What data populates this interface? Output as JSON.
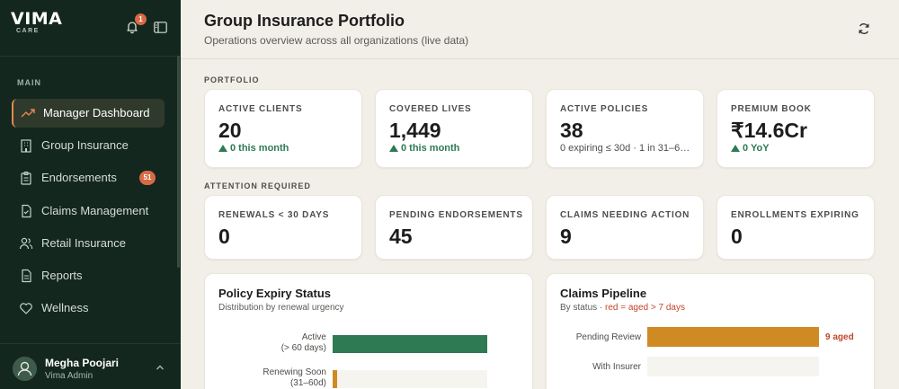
{
  "sidebar": {
    "brand": "VIMA",
    "brand_sub": "CARE",
    "notifications_count": "1",
    "section_label": "MAIN",
    "items": [
      {
        "label": "Manager Dashboard",
        "icon": "trend-up-icon",
        "active": true
      },
      {
        "label": "Group Insurance",
        "icon": "building-icon"
      },
      {
        "label": "Endorsements",
        "icon": "clipboard-icon",
        "badge": "51"
      },
      {
        "label": "Claims Management",
        "icon": "document-icon"
      },
      {
        "label": "Retail Insurance",
        "icon": "users-icon"
      },
      {
        "label": "Reports",
        "icon": "report-icon"
      },
      {
        "label": "Wellness",
        "icon": "heart-icon"
      }
    ],
    "user": {
      "name": "Megha Poojari",
      "role": "Vima Admin"
    }
  },
  "header": {
    "title": "Group Insurance Portfolio",
    "subtitle": "Operations overview across all organizations (live data)"
  },
  "portfolio": {
    "label": "PORTFOLIO",
    "cards": [
      {
        "label": "ACTIVE CLIENTS",
        "value": "20",
        "sub": "0 this month",
        "trend": "up"
      },
      {
        "label": "COVERED LIVES",
        "value": "1,449",
        "sub": "0 this month",
        "trend": "up"
      },
      {
        "label": "ACTIVE POLICIES",
        "value": "38",
        "sub": "0 expiring ≤ 30d · 1 in 31–6…"
      },
      {
        "label": "PREMIUM BOOK",
        "value": "₹14.6Cr",
        "sub": "0 YoY",
        "trend": "up"
      }
    ]
  },
  "attention": {
    "label": "ATTENTION REQUIRED",
    "cards": [
      {
        "label": "RENEWALS < 30 DAYS",
        "value": "0"
      },
      {
        "label": "PENDING ENDORSEMENTS",
        "value": "45"
      },
      {
        "label": "CLAIMS NEEDING ACTION",
        "value": "9"
      },
      {
        "label": "ENROLLMENTS EXPIRING",
        "value": "0"
      }
    ]
  },
  "expiry_panel": {
    "title": "Policy Expiry Status",
    "subtitle": "Distribution by renewal urgency",
    "bars": [
      {
        "label_line1": "Active",
        "label_line2": "(> 60 days)",
        "fill": 1.0,
        "color": "#2d7a53"
      },
      {
        "label_line1": "Renewing Soon",
        "label_line2": "(31–60d)",
        "fill": 0.03,
        "color": "#d08a23"
      }
    ]
  },
  "claims_panel": {
    "title": "Claims Pipeline",
    "subtitle_prefix": "By status · ",
    "subtitle_red": "red = aged > 7 days",
    "bars": [
      {
        "label": "Pending Review",
        "fill": 1.0,
        "color": "#d08a23",
        "note": "9 aged"
      },
      {
        "label": "With Insurer",
        "fill": 0.0,
        "color": "#d08a23",
        "note": ""
      }
    ]
  }
}
